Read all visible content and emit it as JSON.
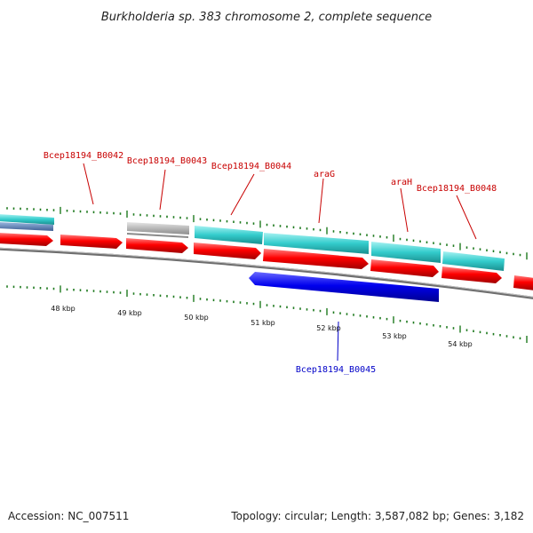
{
  "title": "Burkholderia sp. 383 chromosome 2, complete sequence",
  "kbp_labels": [
    "48 kbp",
    "49 kbp",
    "50 kbp",
    "51 kbp",
    "52 kbp",
    "53 kbp",
    "54 kbp"
  ],
  "gene_labels": {
    "B0042": "Bcep18194_B0042",
    "B0043": "Bcep18194_B0043",
    "B0044": "Bcep18194_B0044",
    "araG": "araG",
    "araH": "araH",
    "B0048": "Bcep18194_B0048",
    "B0045": "Bcep18194_B0045"
  },
  "footer": {
    "accession": "Accession: NC_007511",
    "summary": "Topology: circular; Length: 3,587,082 bp; Genes: 3,182"
  },
  "colors": {
    "cds_forward": "#e60000",
    "cds_reverse": "#0000e6",
    "feature_cyan": "#33cccc",
    "feature_grey": "#b4b4b4",
    "feature_slate": "#5a7fb4",
    "backbone": "#7a7a7a",
    "tick": "#1e7a1e"
  }
}
